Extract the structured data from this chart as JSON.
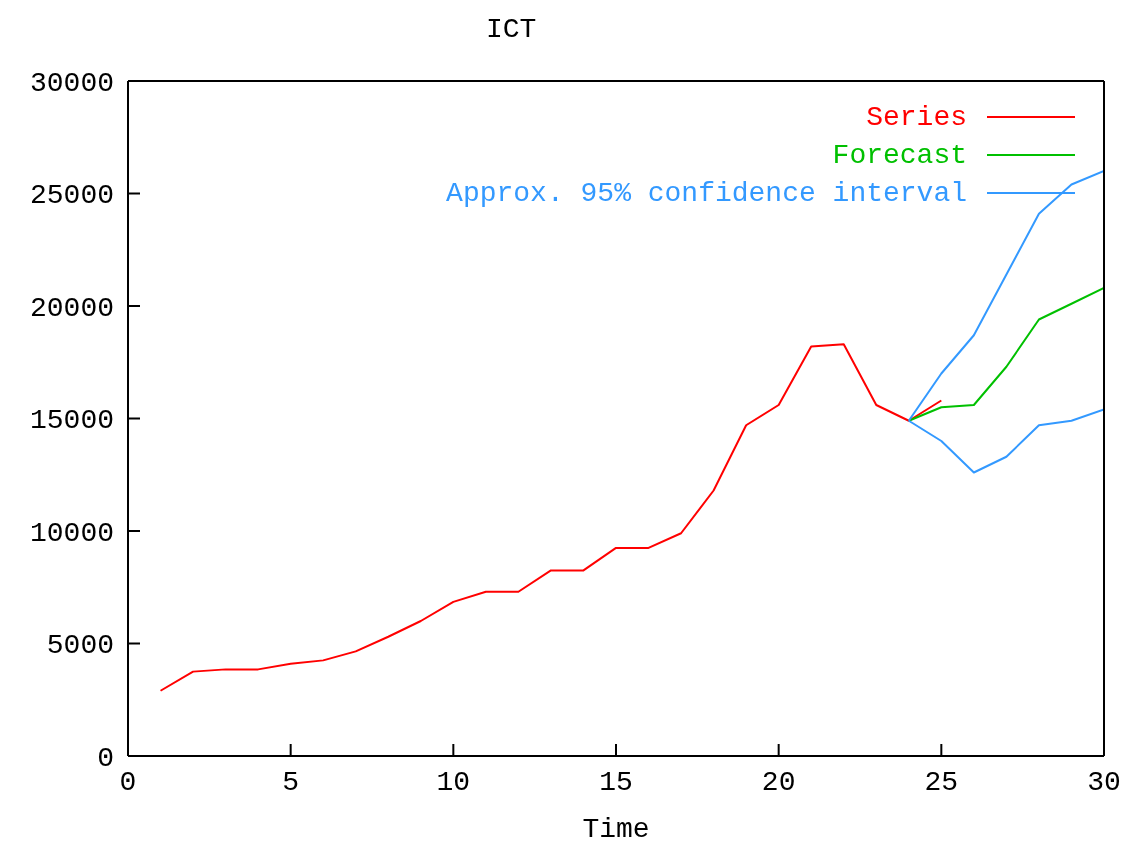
{
  "chart_data": {
    "type": "line",
    "title": "ICT",
    "xlabel": "Time",
    "xlim": [
      0,
      30
    ],
    "xticks": [
      0,
      5,
      10,
      15,
      20,
      25,
      30
    ],
    "ylim": [
      0,
      30000
    ],
    "yticks": [
      0,
      5000,
      10000,
      15000,
      20000,
      25000,
      30000
    ],
    "legend": "top right",
    "marker": "none",
    "line_style": "solid",
    "series": [
      {
        "name": "Series",
        "color": "#ff0000",
        "x": [
          1,
          2,
          3,
          4,
          5,
          6,
          7,
          8,
          9,
          10,
          11,
          12,
          13,
          14,
          15,
          16,
          17,
          18,
          19,
          20,
          21,
          22,
          23,
          24,
          25
        ],
        "values": [
          2900,
          3750,
          3850,
          3850,
          4100,
          4250,
          4650,
          5300,
          6000,
          6850,
          7300,
          7300,
          8250,
          8250,
          9250,
          9250,
          9900,
          11800,
          14700,
          15600,
          18200,
          18300,
          15600,
          14900,
          15800
        ]
      },
      {
        "name": "Forecast",
        "color": "#00c000",
        "x": [
          24,
          25,
          26,
          27,
          28,
          29,
          30
        ],
        "values": [
          14900,
          15500,
          15600,
          17300,
          19400,
          20100,
          20800
        ]
      },
      {
        "name": "Approx. 95% confidence interval",
        "color": "#3399ff",
        "x": [
          24,
          25,
          26,
          27,
          28,
          29,
          30
        ],
        "values": [
          14900,
          17000,
          18700,
          21400,
          24100,
          25400,
          26000
        ]
      },
      {
        "color": "#3399ff",
        "x": [
          24,
          25,
          26,
          27,
          28,
          29,
          30
        ],
        "values": [
          14900,
          14000,
          12600,
          13300,
          14700,
          14900,
          15400
        ]
      }
    ]
  }
}
